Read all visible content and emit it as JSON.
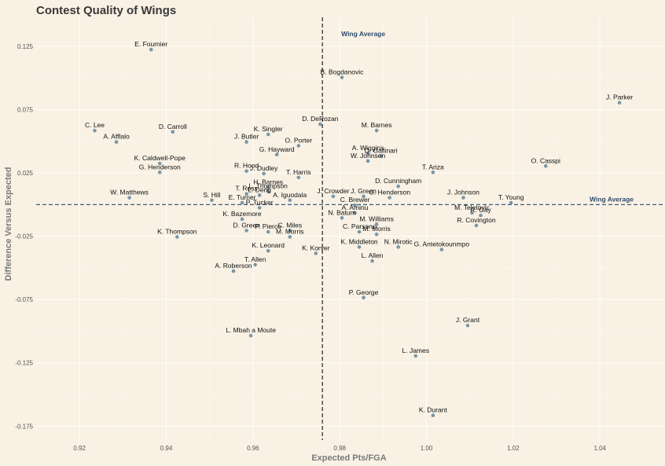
{
  "chart_data": {
    "type": "scatter",
    "title": "Contest Quality of Wings",
    "xlabel": "Expected Pts/FGA",
    "ylabel": "Difference Versus Expected",
    "xlim": [
      0.91,
      1.055
    ],
    "ylim": [
      -0.186,
      0.148
    ],
    "x_ticks": [
      "0.92",
      "0.94",
      "0.96",
      "0.98",
      "1.00",
      "1.02",
      "1.04"
    ],
    "y_ticks": [
      "0.125",
      "0.075",
      "0.025",
      "-0.025",
      "-0.075",
      "-0.125",
      "-0.175"
    ],
    "grid": true,
    "point_color": "#7a96a8",
    "reference_color": "#2e4a6b",
    "reference_lines": {
      "x": 0.976,
      "y": 0.0,
      "x_label": "Wing Average",
      "y_label": "Wing Average"
    },
    "points": [
      {
        "name": "E. Fournier",
        "x": 0.9365,
        "y": 0.1225
      },
      {
        "name": "B. Bogdanovic",
        "x": 0.9805,
        "y": 0.1005
      },
      {
        "name": "J. Parker",
        "x": 1.0445,
        "y": 0.0805
      },
      {
        "name": "D. DeRozan",
        "x": 0.9755,
        "y": 0.0635
      },
      {
        "name": "M. Barnes",
        "x": 0.9885,
        "y": 0.0585
      },
      {
        "name": "C. Lee",
        "x": 0.9235,
        "y": 0.0585
      },
      {
        "name": "D. Carroll",
        "x": 0.9415,
        "y": 0.0575
      },
      {
        "name": "K. Singler",
        "x": 0.9635,
        "y": 0.0555
      },
      {
        "name": "A. Afflalo",
        "x": 0.9285,
        "y": 0.0495
      },
      {
        "name": "J. Butler",
        "x": 0.9585,
        "y": 0.0495
      },
      {
        "name": "O. Porter",
        "x": 0.9705,
        "y": 0.0465
      },
      {
        "name": "A. Wiggins",
        "x": 0.9865,
        "y": 0.0405
      },
      {
        "name": "G. Hayward",
        "x": 0.9655,
        "y": 0.0395
      },
      {
        "name": "D. Gallinari",
        "x": 0.9895,
        "y": 0.0385
      },
      {
        "name": "W. Johnson",
        "x": 0.9865,
        "y": 0.0345
      },
      {
        "name": "K. Caldwell-Pope",
        "x": 0.9385,
        "y": 0.0325
      },
      {
        "name": "O. Casspi",
        "x": 1.0275,
        "y": 0.0305
      },
      {
        "name": "T. Ariza",
        "x": 1.0015,
        "y": 0.0255
      },
      {
        "name": "G. Henderson",
        "x": 0.9385,
        "y": 0.0255
      },
      {
        "name": "R. Hood",
        "x": 0.9585,
        "y": 0.0265
      },
      {
        "name": "J. Dudley",
        "x": 0.9625,
        "y": 0.0245
      },
      {
        "name": "T. Harris",
        "x": 0.9705,
        "y": 0.0215
      },
      {
        "name": "D. Cunningham",
        "x": 0.9935,
        "y": 0.0145
      },
      {
        "name": "H. Barnes",
        "x": 0.9635,
        "y": 0.0135
      },
      {
        "name": "L. Thompson",
        "x": 0.9635,
        "y": 0.0105
      },
      {
        "name": "T. Ross",
        "x": 0.9585,
        "y": 0.0085
      },
      {
        "name": "L. Deng",
        "x": 0.9615,
        "y": 0.0075
      },
      {
        "name": "J. Crowder",
        "x": 0.9785,
        "y": 0.0065
      },
      {
        "name": "J. Green",
        "x": 0.9855,
        "y": 0.0065
      },
      {
        "name": "G. Henderson",
        "x": 0.9915,
        "y": 0.0055
      },
      {
        "name": "W. Matthews",
        "x": 0.9315,
        "y": 0.0055
      },
      {
        "name": "S. Hill",
        "x": 0.9505,
        "y": 0.0035
      },
      {
        "name": "A. Iguodala",
        "x": 0.9685,
        "y": 0.0035
      },
      {
        "name": "J. Johnson",
        "x": 1.0085,
        "y": 0.0055
      },
      {
        "name": "T. Young",
        "x": 1.0195,
        "y": 0.0015
      },
      {
        "name": "E. Turner",
        "x": 0.9575,
        "y": 0.0015
      },
      {
        "name": "C. Brewer",
        "x": 0.9835,
        "y": -0.0005
      },
      {
        "name": "P. Tucker",
        "x": 0.9615,
        "y": -0.0025
      },
      {
        "name": "M. Teletovic",
        "x": 1.0105,
        "y": -0.0065
      },
      {
        "name": "R. Gay",
        "x": 1.0125,
        "y": -0.0085
      },
      {
        "name": "A. Aminu",
        "x": 0.9835,
        "y": -0.0065
      },
      {
        "name": "N. Batum",
        "x": 0.9805,
        "y": -0.0105
      },
      {
        "name": "K. Bazemore",
        "x": 0.9575,
        "y": -0.0115
      },
      {
        "name": "M. Williams",
        "x": 0.9885,
        "y": -0.0155
      },
      {
        "name": "R. Covington",
        "x": 1.0115,
        "y": -0.0165
      },
      {
        "name": "D. Green",
        "x": 0.9585,
        "y": -0.0205
      },
      {
        "name": "P. Pierce",
        "x": 0.9635,
        "y": -0.0215
      },
      {
        "name": "C. Miles",
        "x": 0.9685,
        "y": -0.0205
      },
      {
        "name": "C. Parsons",
        "x": 0.9845,
        "y": -0.0215
      },
      {
        "name": "M. Morris",
        "x": 0.9885,
        "y": -0.0235
      },
      {
        "name": "M. Morris",
        "x": 0.9685,
        "y": -0.0255
      },
      {
        "name": "K. Thompson",
        "x": 0.9425,
        "y": -0.0255
      },
      {
        "name": "K. Middleton",
        "x": 0.9845,
        "y": -0.0335
      },
      {
        "name": "N. Mirotic",
        "x": 0.9935,
        "y": -0.0335
      },
      {
        "name": "G. Antetokounmpo",
        "x": 1.0035,
        "y": -0.0355
      },
      {
        "name": "K. Leonard",
        "x": 0.9635,
        "y": -0.0365
      },
      {
        "name": "K. Korver",
        "x": 0.9745,
        "y": -0.0385
      },
      {
        "name": "L. Allen",
        "x": 0.9875,
        "y": -0.0445
      },
      {
        "name": "T. Allen",
        "x": 0.9605,
        "y": -0.0475
      },
      {
        "name": "A. Roberson",
        "x": 0.9555,
        "y": -0.0525
      },
      {
        "name": "P. George",
        "x": 0.9855,
        "y": -0.0735
      },
      {
        "name": "J. Grant",
        "x": 1.0095,
        "y": -0.0955
      },
      {
        "name": "L. Mbah a Moute",
        "x": 0.9595,
        "y": -0.1035
      },
      {
        "name": "L. James",
        "x": 0.9975,
        "y": -0.1195
      },
      {
        "name": "K. Durant",
        "x": 1.0015,
        "y": -0.1665
      }
    ]
  }
}
